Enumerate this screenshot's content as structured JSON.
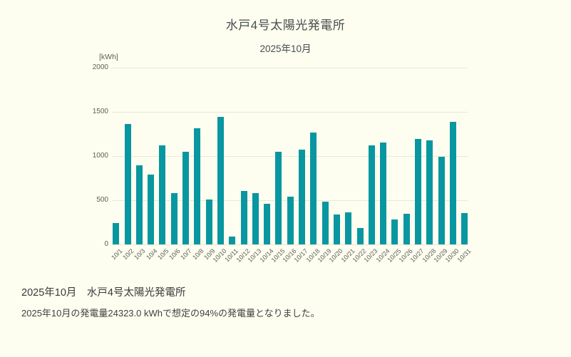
{
  "chart_data": {
    "type": "bar",
    "title": "水戸4号太陽光発電所",
    "subtitle": "2025年10月",
    "unit_label": "[kWh]",
    "xlabel": "",
    "ylabel": "kWh",
    "ylim": [
      0,
      2000
    ],
    "yticks": [
      0,
      500,
      1000,
      1500,
      2000
    ],
    "grid": true,
    "legend": "none",
    "bar_color": "#0897a0",
    "categories": [
      "10/1",
      "10/2",
      "10/3",
      "10/4",
      "10/5",
      "10/6",
      "10/7",
      "10/8",
      "10/9",
      "10/10",
      "10/11",
      "10/12",
      "10/13",
      "10/14",
      "10/15",
      "10/16",
      "10/17",
      "10/18",
      "10/19",
      "10/20",
      "10/21",
      "10/22",
      "10/23",
      "10/24",
      "10/25",
      "10/26",
      "10/27",
      "10/28",
      "10/29",
      "10/30",
      "10/31"
    ],
    "values": [
      243,
      1360,
      895,
      790,
      1122,
      578,
      1045,
      1315,
      505,
      1440,
      90,
      605,
      583,
      462,
      1045,
      540,
      1070,
      1265,
      480,
      335,
      365,
      185,
      1125,
      1150,
      280,
      345,
      1195,
      1180,
      990,
      1385,
      355
    ]
  },
  "footer": {
    "heading": "2025年10月　水戸4号太陽光発電所",
    "description": "2025年10月の発電量24323.0 kWhで想定の94%の発電量となりました。"
  },
  "colors": {
    "background": "#fdfdf0",
    "bar": "#0897a0",
    "grid": "#e8e8db",
    "tick_text": "#5e5e56",
    "title_text": "#474e4d",
    "footer_text": "#3a3a38"
  }
}
